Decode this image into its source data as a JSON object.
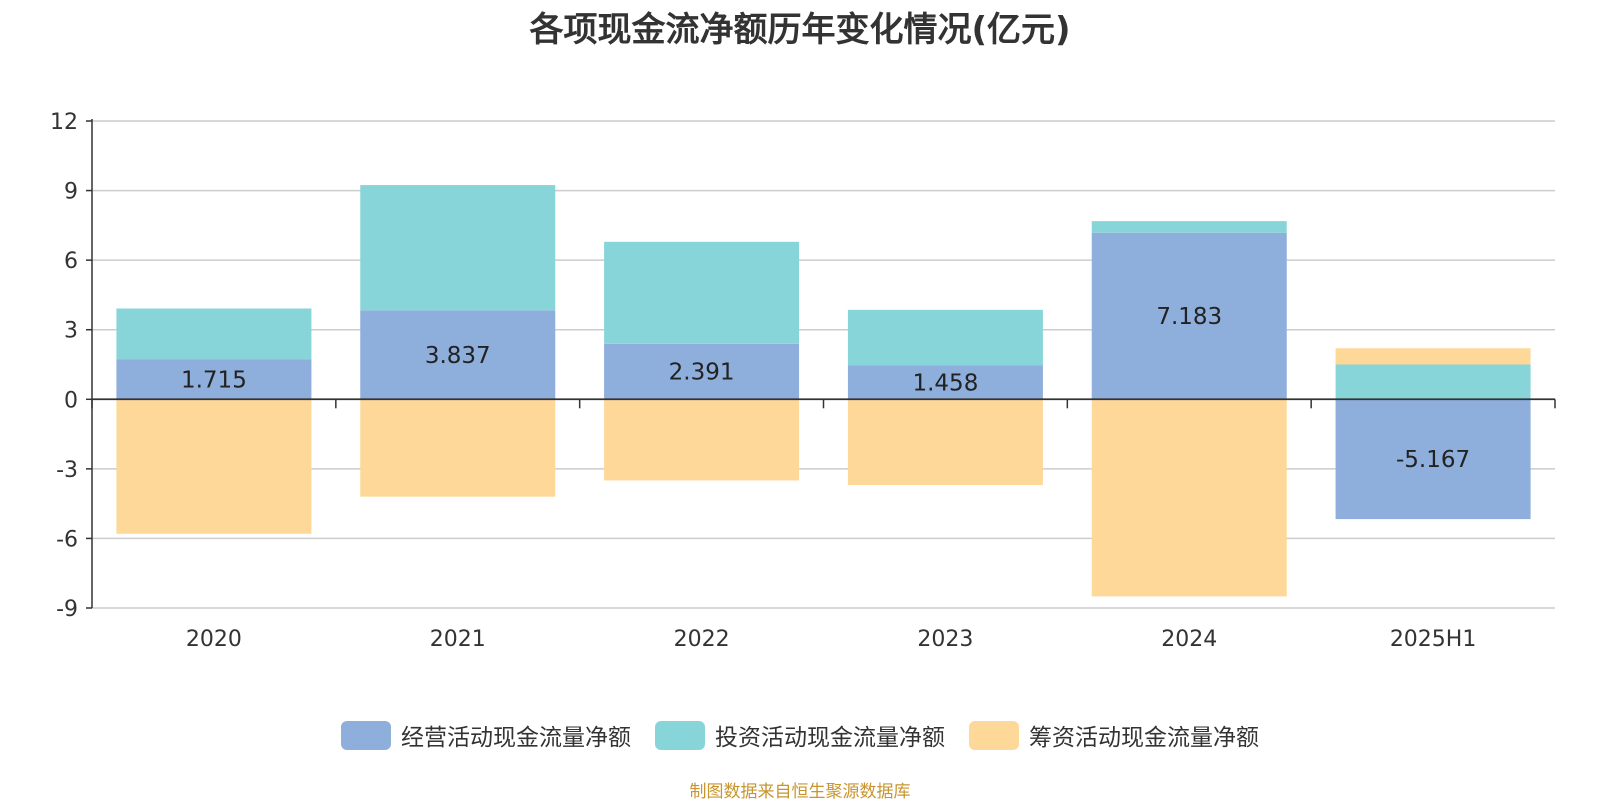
{
  "chart_data": {
    "type": "bar",
    "stacked": true,
    "title": "各项现金流净额历年变化情况(亿元)",
    "categories": [
      "2020",
      "2021",
      "2022",
      "2023",
      "2024",
      "2025H1"
    ],
    "series": [
      {
        "name": "经营活动现金流量净额",
        "color": "#8eaedb",
        "values": [
          1.715,
          3.837,
          2.391,
          1.458,
          7.183,
          -5.167
        ]
      },
      {
        "name": "投资活动现金流量净额",
        "color": "#88d5d9",
        "values": [
          2.2,
          5.4,
          4.4,
          2.4,
          0.5,
          1.5
        ]
      },
      {
        "name": "筹资活动现金流量净额",
        "color": "#fed899",
        "values": [
          -5.8,
          -4.2,
          -3.5,
          -3.7,
          -8.5,
          0.7
        ]
      }
    ],
    "data_labels_series": "经营活动现金流量净额",
    "data_labels": [
      "1.715",
      "3.837",
      "2.391",
      "1.458",
      "7.183",
      "-5.167"
    ],
    "ylim": [
      -9,
      12
    ],
    "yticks": [
      "12",
      "9",
      "6",
      "3",
      "0",
      "-3",
      "-6",
      "-9"
    ],
    "ytick_values": [
      12,
      9,
      6,
      3,
      0,
      -3,
      -6,
      -9
    ],
    "grid": true,
    "legend_position": "bottom",
    "source_note": "制图数据来自恒生聚源数据库"
  }
}
